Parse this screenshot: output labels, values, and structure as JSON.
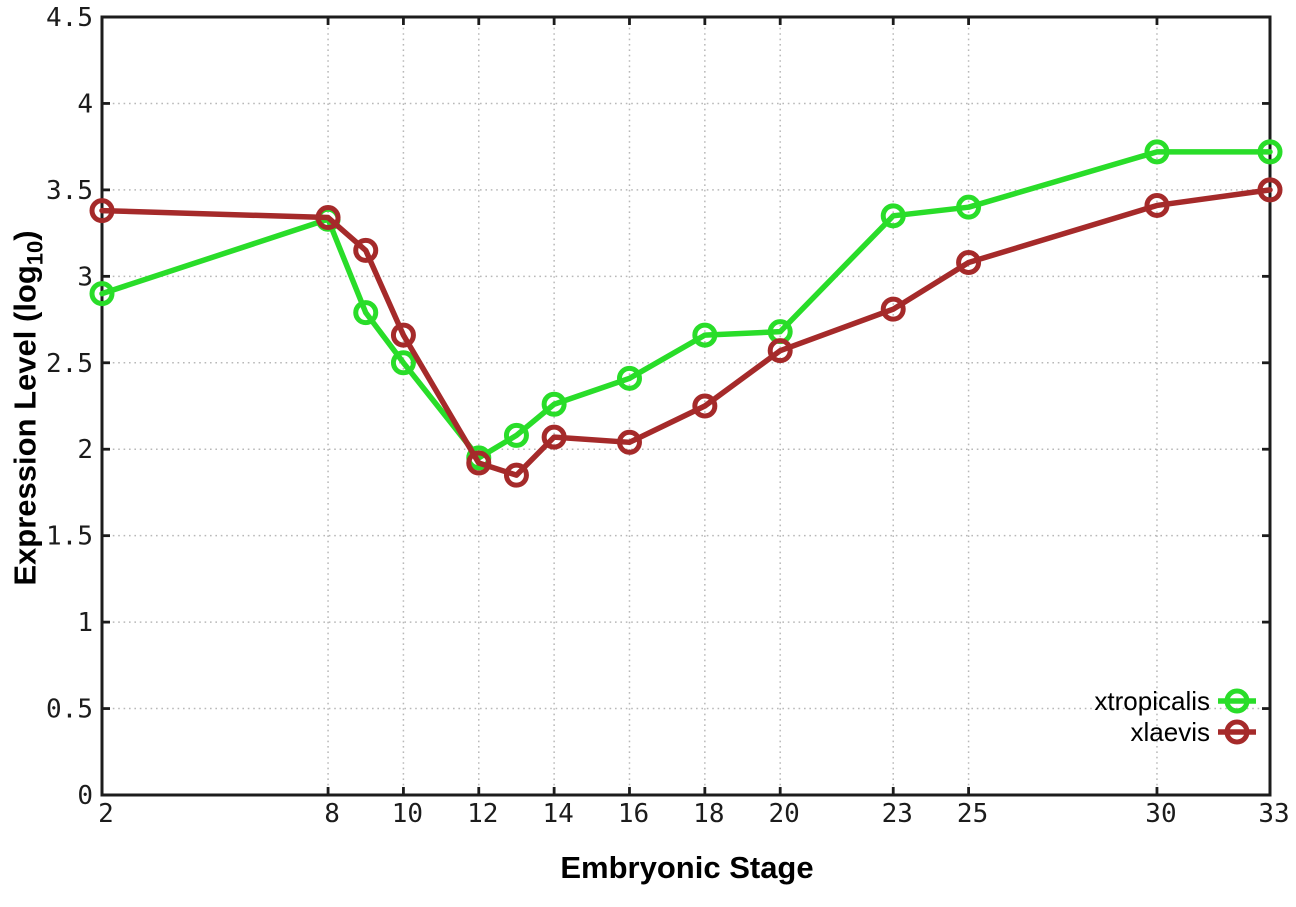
{
  "page": {
    "background": "#ffffff"
  },
  "chart_data": {
    "type": "line",
    "title": "",
    "xlabel": "Embryonic Stage",
    "ylabel": {
      "text": "Expression Level (log",
      "sub": "10",
      "suffix": ")"
    },
    "xlim": [
      2,
      33
    ],
    "ylim": [
      0,
      4.5
    ],
    "xticks": [
      2,
      8,
      10,
      12,
      14,
      16,
      18,
      20,
      23,
      25,
      30,
      33
    ],
    "yticks": [
      0,
      0.5,
      1,
      1.5,
      2,
      2.5,
      3,
      3.5,
      4,
      4.5
    ],
    "grid": true,
    "legend_position": "bottom-right-inside",
    "x": [
      2,
      8,
      9,
      10,
      12,
      13,
      14,
      16,
      18,
      20,
      23,
      25,
      30,
      33
    ],
    "series": [
      {
        "name": "xtropicalis",
        "color": "#29dd29",
        "values": [
          2.9,
          3.33,
          2.79,
          2.5,
          1.95,
          2.08,
          2.26,
          2.41,
          2.66,
          2.68,
          3.35,
          3.4,
          3.72,
          3.72
        ]
      },
      {
        "name": "xlaevis",
        "color": "#a52a2a",
        "values": [
          3.38,
          3.34,
          3.15,
          2.66,
          1.92,
          1.85,
          2.07,
          2.04,
          2.25,
          2.57,
          2.81,
          3.08,
          3.41,
          3.5
        ]
      }
    ],
    "style": {
      "border_color": "#1c1c1c",
      "grid_color": "#b8b8b8",
      "tick_label_color": "#1c1c1c",
      "legend_text_color": "#000000"
    }
  }
}
